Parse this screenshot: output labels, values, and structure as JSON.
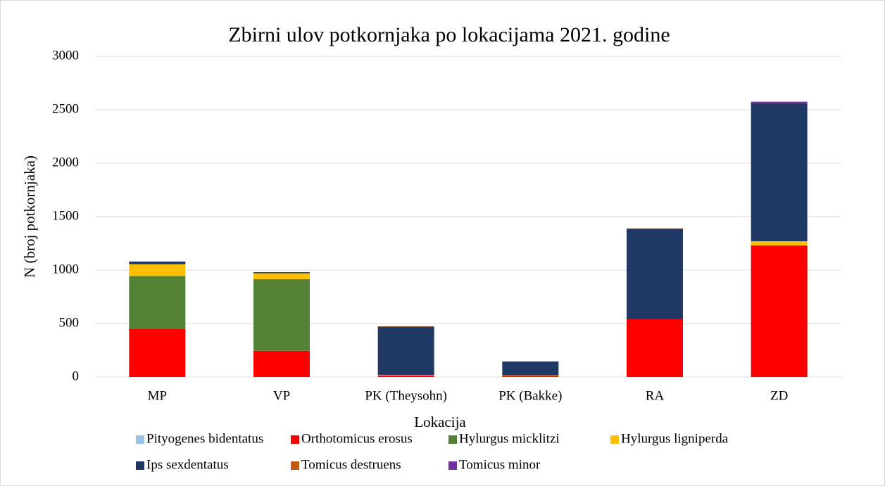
{
  "chart_data": {
    "type": "stacked_bar",
    "title": "Zbirni ulov potkornjaka po lokacijama 2021. godine",
    "x_label": "Lokacija",
    "y_label": "N (broj potkornjaka)",
    "categories": [
      "MP",
      "VP",
      "PK (Theysohn)",
      "PK (Bakke)",
      "RA",
      "ZD"
    ],
    "series": [
      {
        "name": "Pityogenes bidentatus",
        "color": "#9dc3e6",
        "values": [
          0,
          0,
          0,
          0,
          0,
          0
        ]
      },
      {
        "name": "Orthotomicus erosus",
        "color": "#ff0000",
        "values": [
          450,
          245,
          15,
          10,
          540,
          1230
        ]
      },
      {
        "name": "Hylurgus micklitzi",
        "color": "#548235",
        "values": [
          495,
          670,
          0,
          0,
          0,
          0
        ]
      },
      {
        "name": "Hylurgus ligniperda",
        "color": "#ffc000",
        "values": [
          110,
          55,
          5,
          5,
          0,
          40
        ]
      },
      {
        "name": "Ips sexdentatus",
        "color": "#203864",
        "values": [
          25,
          10,
          450,
          130,
          845,
          1290
        ]
      },
      {
        "name": "Tomicus destruens",
        "color": "#c55a11",
        "values": [
          0,
          0,
          5,
          0,
          5,
          0
        ]
      },
      {
        "name": "Tomicus minor",
        "color": "#7030a0",
        "values": [
          0,
          0,
          0,
          0,
          0,
          15
        ]
      }
    ],
    "ylim": [
      0,
      3000
    ],
    "yticks": [
      0,
      500,
      1000,
      1500,
      2000,
      2500,
      3000
    ],
    "grid": true
  }
}
